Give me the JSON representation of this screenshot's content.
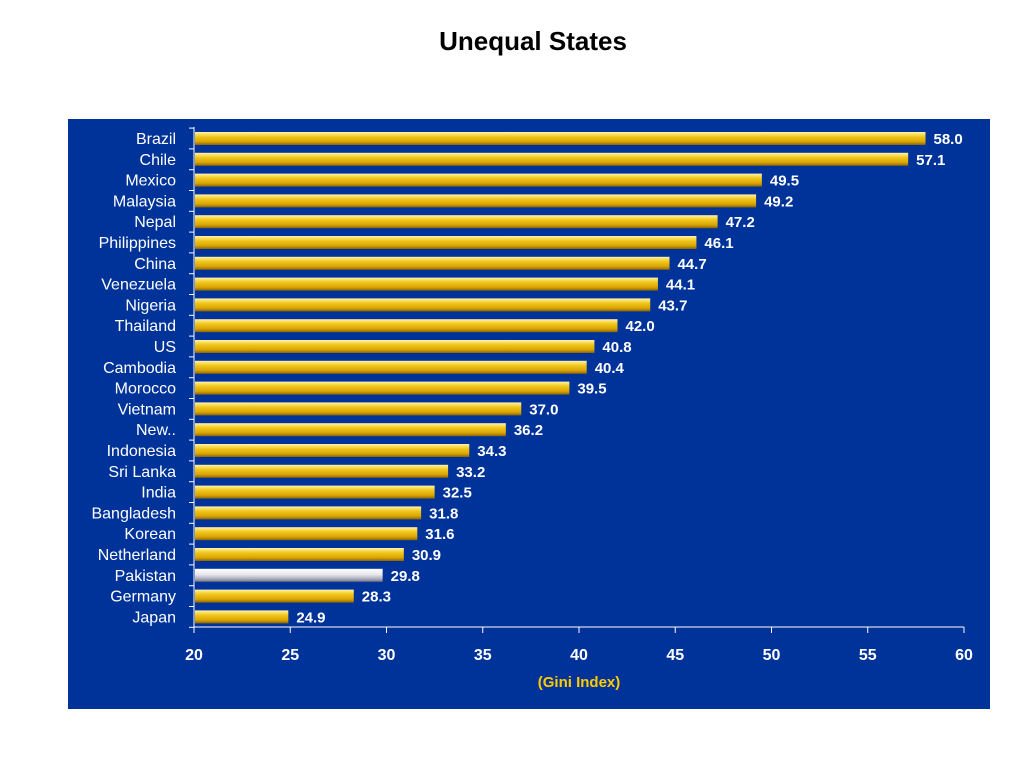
{
  "page": {
    "title": "Unequal States"
  },
  "colors": {
    "panel_bg": "#003399",
    "bar": "#E8B80C",
    "bar_highlight": "#E8E8EC",
    "axis_title": "#FFCC00",
    "text": "#FFFFFF"
  },
  "chart_data": {
    "type": "bar",
    "orientation": "horizontal",
    "title": "Unequal States",
    "xlabel": "(Gini Index)",
    "ylabel": "",
    "xlim": [
      20,
      60
    ],
    "xticks": [
      20,
      25,
      30,
      35,
      40,
      45,
      50,
      55,
      60
    ],
    "grid": false,
    "highlight": "Pakistan",
    "categories": [
      "Brazil",
      "Chile",
      "Mexico",
      "Malaysia",
      "Nepal",
      "Philippines",
      "China",
      "Venezuela",
      "Nigeria",
      "Thailand",
      "US",
      "Cambodia",
      "Morocco",
      "Vietnam",
      "New..",
      "Indonesia",
      "Sri Lanka",
      "India",
      "Bangladesh",
      "Korean",
      "Netherland",
      "Pakistan",
      "Germany",
      "Japan"
    ],
    "values": [
      58.0,
      57.1,
      49.5,
      49.2,
      47.2,
      46.1,
      44.7,
      44.1,
      43.7,
      42.0,
      40.8,
      40.4,
      39.5,
      37.0,
      36.2,
      34.3,
      33.2,
      32.5,
      31.8,
      31.6,
      30.9,
      29.8,
      28.3,
      24.9
    ],
    "value_labels": [
      "58.0",
      "57.1",
      "49.5",
      "49.2",
      "47.2",
      "46.1",
      "44.7",
      "44.1",
      "43.7",
      "42.0",
      "40.8",
      "40.4",
      "39.5",
      "37.0",
      "36.2",
      "34.3",
      "33.2",
      "32.5",
      "31.8",
      "31.6",
      "30.9",
      "29.8",
      "28.3",
      "24.9"
    ]
  }
}
